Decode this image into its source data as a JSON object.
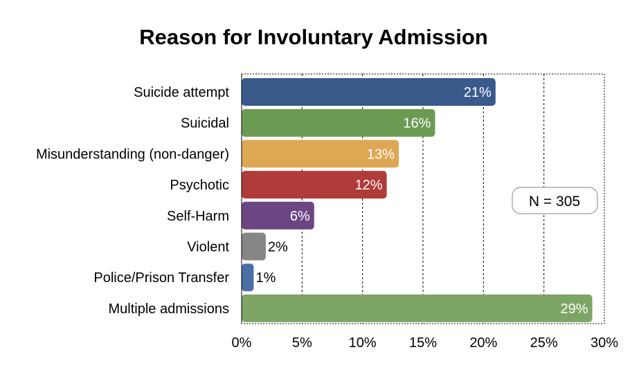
{
  "chart_data": {
    "type": "bar",
    "orientation": "horizontal",
    "title": "Reason for Involuntary Admission",
    "xlabel": "",
    "ylabel": "",
    "xlim": [
      0,
      30
    ],
    "x_ticks": [
      0,
      5,
      10,
      15,
      20,
      25,
      30
    ],
    "x_tick_labels": [
      "0%",
      "5%",
      "10%",
      "15%",
      "20%",
      "25%",
      "30%"
    ],
    "grid": "vertical dashed",
    "categories": [
      "Suicide attempt",
      "Suicidal",
      "Misunderstanding (non-danger)",
      "Psychotic",
      "Self-Harm",
      "Violent",
      "Police/Prison Transfer",
      "Multiple admissions"
    ],
    "values": [
      21,
      16,
      13,
      12,
      6,
      2,
      1,
      29
    ],
    "data_labels": [
      "21%",
      "16%",
      "13%",
      "12%",
      "6%",
      "2%",
      "1%",
      "29%"
    ],
    "colors": [
      "#3a5a8c",
      "#6b9a52",
      "#dea753",
      "#b03c39",
      "#6b4682",
      "#868686",
      "#4a6fa5",
      "#7da565"
    ],
    "annotation": "N = 305"
  }
}
